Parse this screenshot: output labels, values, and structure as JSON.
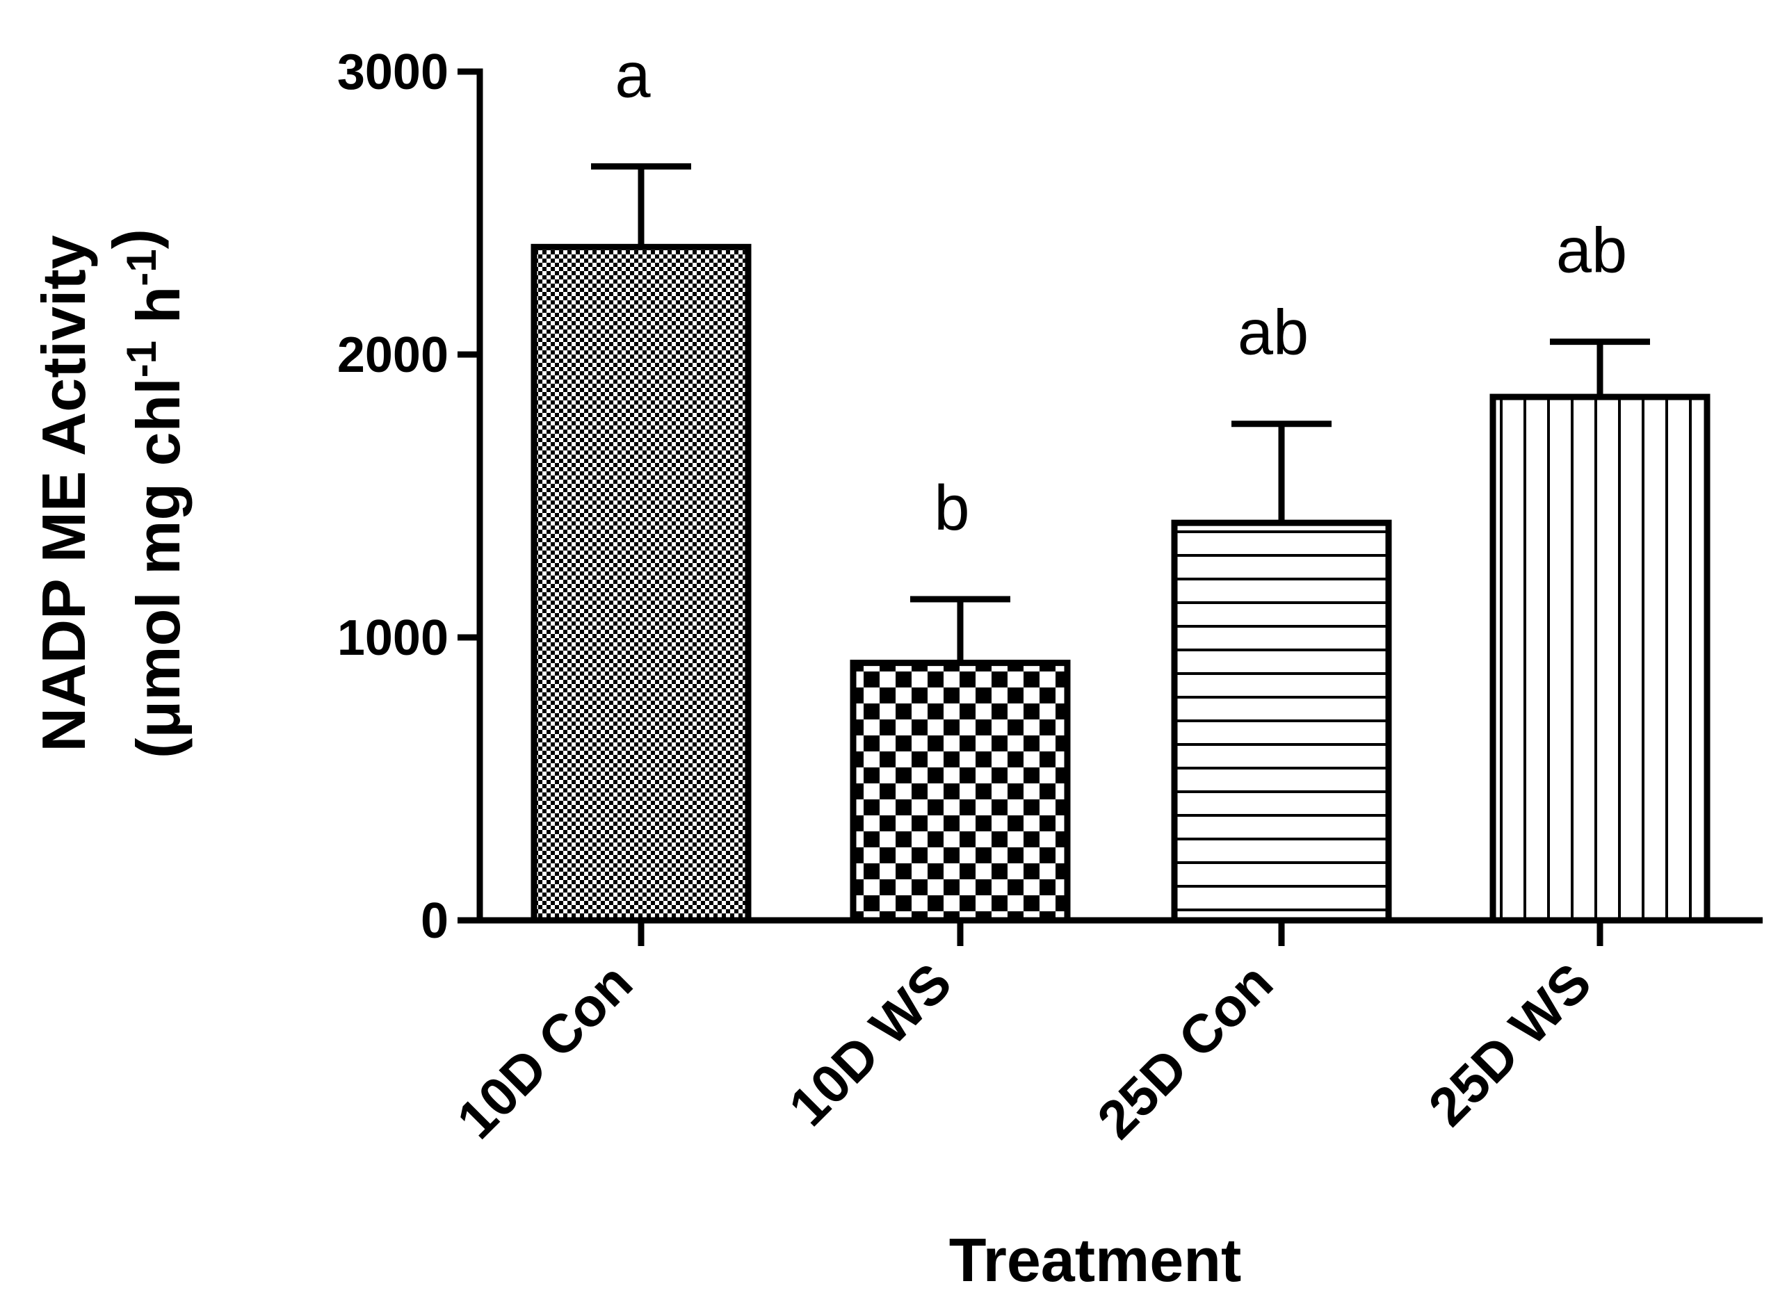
{
  "chart_data": {
    "type": "bar",
    "title": "",
    "xlabel": "Treatment",
    "ylabel": {
      "line1": "NADP ME Activity",
      "line2_pre": "(μmol mg chl",
      "sup1": "-1",
      "line2_mid": " h",
      "sup2": "-1",
      "line2_post": ")"
    },
    "categories": [
      "10D Con",
      "10D WS",
      "25D Con",
      "25D WS"
    ],
    "values": [
      2380,
      910,
      1405,
      1850
    ],
    "errors": [
      285,
      225,
      350,
      195
    ],
    "significance": [
      "a",
      "b",
      "ab",
      "ab"
    ],
    "patterns": [
      "fine-checker",
      "coarse-checker",
      "horizontal-lines",
      "vertical-lines"
    ],
    "ylim": [
      0,
      3000
    ],
    "yticks": [
      0,
      1000,
      2000,
      3000
    ],
    "ytick_labels": [
      "0",
      "1000",
      "2000",
      "3000"
    ],
    "grid": false,
    "legend": null,
    "colors": {
      "bar_stroke": "#000000",
      "bar_fill": "#ffffff",
      "axis": "#000000"
    }
  }
}
